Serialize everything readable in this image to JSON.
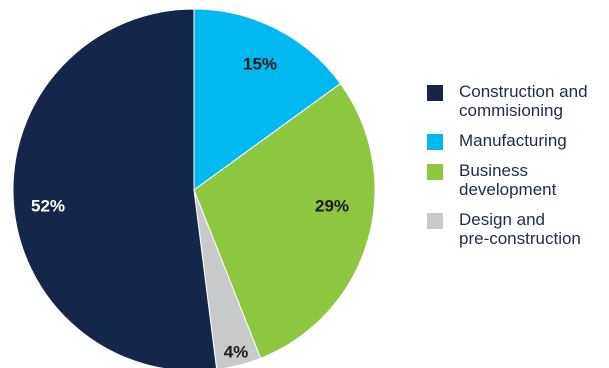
{
  "chart_data": {
    "type": "pie",
    "title": "",
    "start_angle_deg": 0,
    "direction": "clockwise",
    "legend_position": "right",
    "slices": [
      {
        "name": "Manufacturing",
        "value": 15,
        "label": "15%",
        "color": "#00b9f1",
        "label_color": "#1a1a1a"
      },
      {
        "name": "Business development",
        "value": 29,
        "label": "29%",
        "color": "#8dc63f",
        "label_color": "#1a1a1a"
      },
      {
        "name": "Design and pre-construction",
        "value": 4,
        "label": "4%",
        "color": "#c8c9cb",
        "label_color": "#1a1a1a"
      },
      {
        "name": "Construction and commisioning",
        "value": 52,
        "label": "52%",
        "color": "#14264a",
        "label_color": "#ffffff"
      }
    ]
  },
  "legend": {
    "items": [
      {
        "text": "Construction and\ncommisioning",
        "color": "#14264a"
      },
      {
        "text": "Manufacturing",
        "color": "#00b9f1"
      },
      {
        "text": "Business\ndevelopment",
        "color": "#8dc63f"
      },
      {
        "text": "Design and\npre-construction",
        "color": "#c8c9cb"
      }
    ]
  }
}
